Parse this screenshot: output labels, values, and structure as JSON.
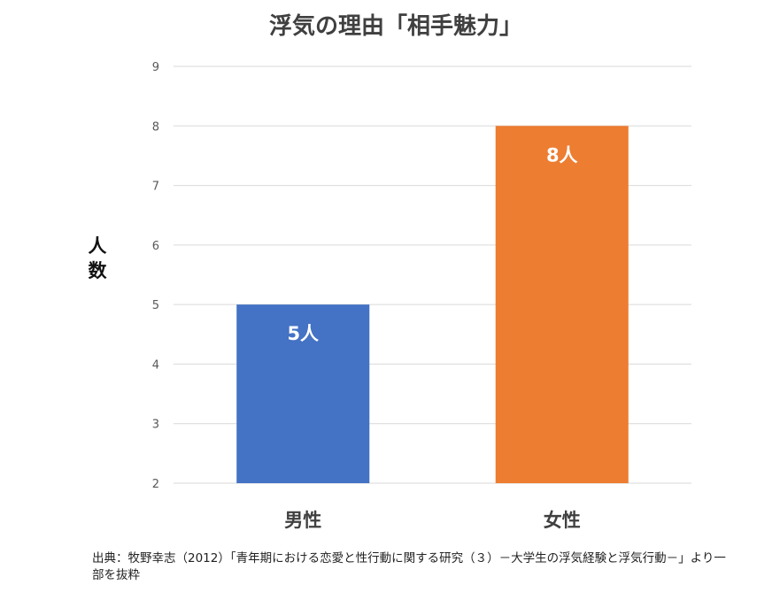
{
  "chart_data": {
    "type": "bar",
    "title": "浮気の理由「相手魅力」",
    "ylabel_chars": [
      "人",
      "数"
    ],
    "categories": [
      "男性",
      "女性"
    ],
    "values": [
      5,
      8
    ],
    "data_labels": [
      "5人",
      "8人"
    ],
    "colors": [
      "#4472C4",
      "#ED7D31"
    ],
    "ylim": [
      2,
      9
    ],
    "yticks": [
      "2",
      "3",
      "4",
      "5",
      "6",
      "7",
      "8",
      "9"
    ],
    "grid": true,
    "legend": "none"
  },
  "source": "出典：牧野幸志（2012）「青年期における恋愛と性行動に関する研究（３）－大学生の浮気経験と浮気行動－」より一部を抜粋"
}
